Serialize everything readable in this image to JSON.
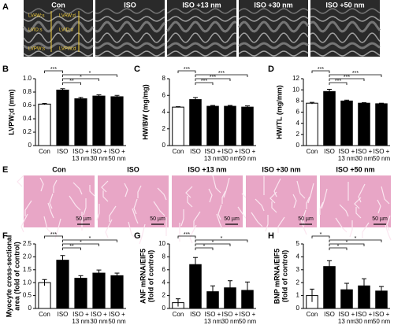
{
  "panel_labels": [
    "A",
    "B",
    "C",
    "D",
    "E",
    "F",
    "G",
    "H"
  ],
  "echo": {
    "titles": [
      "Con",
      "ISO",
      "ISO +13 nm",
      "ISO +30 nm",
      "ISO +50 nm"
    ],
    "annotations": [
      "LVAW;s",
      "LVAW;d",
      "LVID;s",
      "LVID;d",
      "LVPW;s",
      "LVPW;d"
    ]
  },
  "histology": {
    "titles": [
      "Con",
      "ISO",
      "ISO +13 nm",
      "ISO +30 nm",
      "ISO +50 nm"
    ],
    "scale_bar": "50 µm"
  },
  "chart_data": [
    {
      "type": "bar",
      "ylabel": "LVPW;d (mm)",
      "categories": [
        "Con",
        "ISO",
        "ISO + 13 nm",
        "ISO + 30 nm",
        "ISO + 50 nm"
      ],
      "values": [
        0.62,
        0.83,
        0.7,
        0.74,
        0.73
      ],
      "errors": [
        0.01,
        0.02,
        0.02,
        0.02,
        0.02
      ],
      "colors": [
        "#ffffff",
        "#000000",
        "#000000",
        "#000000",
        "#000000"
      ],
      "ylim": [
        0,
        1
      ],
      "yticks": [
        0,
        0.2,
        0.4,
        0.6,
        0.8,
        {
          "value": 1,
          "label": "1.0"
        }
      ],
      "brackets": [
        {
          "text": "***",
          "pair": [
            "Con",
            "ISO"
          ]
        },
        {
          "text": "**",
          "pair": [
            "ISO",
            "ISO + 13 nm"
          ]
        },
        {
          "text": "*",
          "pair": [
            "ISO",
            "ISO + 30 nm"
          ]
        },
        {
          "text": "*",
          "pair": [
            "ISO",
            "ISO + 50 nm"
          ]
        }
      ]
    },
    {
      "type": "bar",
      "ylabel": "HW/BW (mg/mg)",
      "categories": [
        "Con",
        "ISO",
        "ISO + 13 nm",
        "ISO + 30 nm",
        "ISO + 50 nm"
      ],
      "values": [
        4.6,
        5.5,
        4.7,
        4.7,
        4.6
      ],
      "errors": [
        0.05,
        0.25,
        0.1,
        0.1,
        0.15
      ],
      "colors": [
        "#ffffff",
        "#000000",
        "#000000",
        "#000000",
        "#000000"
      ],
      "ylim": [
        0,
        8
      ],
      "yticks": [
        0,
        2,
        4,
        6,
        8
      ],
      "brackets": [
        {
          "text": "***",
          "pair": [
            "Con",
            "ISO"
          ]
        },
        {
          "text": "***",
          "pair": [
            "ISO",
            "ISO + 13 nm"
          ]
        },
        {
          "text": "***",
          "pair": [
            "ISO",
            "ISO + 30 nm"
          ]
        },
        {
          "text": "***",
          "pair": [
            "ISO",
            "ISO + 50 nm"
          ]
        }
      ]
    },
    {
      "type": "bar",
      "ylabel": "HW/TL (mg/mm)",
      "categories": [
        "Con",
        "ISO",
        "ISO + 13 nm",
        "ISO + 30 nm",
        "ISO + 50 nm"
      ],
      "values": [
        7.6,
        9.7,
        8.0,
        7.6,
        7.5
      ],
      "errors": [
        0.15,
        0.4,
        0.15,
        0.1,
        0.1
      ],
      "colors": [
        "#ffffff",
        "#000000",
        "#000000",
        "#000000",
        "#000000"
      ],
      "ylim": [
        0,
        12
      ],
      "yticks": [
        0,
        2,
        4,
        6,
        8,
        10,
        12
      ],
      "brackets": [
        {
          "text": "***",
          "pair": [
            "Con",
            "ISO"
          ]
        },
        {
          "text": "***",
          "pair": [
            "ISO",
            "ISO + 13 nm"
          ]
        },
        {
          "text": "***",
          "pair": [
            "ISO",
            "ISO + 30 nm"
          ]
        },
        {
          "text": "***",
          "pair": [
            "ISO",
            "ISO + 50 nm"
          ]
        }
      ]
    },
    {
      "type": "bar",
      "ylabel": [
        "Myocyte cross-sectional",
        "area (fold of control)"
      ],
      "categories": [
        "Con",
        "ISO",
        "ISO + 13 nm",
        "ISO + 30 nm",
        "ISO + 50 nm"
      ],
      "values": [
        1.0,
        1.87,
        1.17,
        1.37,
        1.27
      ],
      "errors": [
        0.12,
        0.18,
        0.1,
        0.12,
        0.1
      ],
      "colors": [
        "#ffffff",
        "#000000",
        "#000000",
        "#000000",
        "#000000"
      ],
      "ylim": [
        0,
        2.5
      ],
      "yticks": [
        0,
        0.5,
        {
          "value": 1,
          "label": "1.0"
        },
        1.5,
        {
          "value": 2,
          "label": "2.0"
        },
        2.5
      ],
      "brackets": [
        {
          "text": "***",
          "pair": [
            "Con",
            "ISO"
          ]
        },
        {
          "text": "**",
          "pair": [
            "ISO",
            "ISO + 13 nm"
          ]
        },
        {
          "text": "*",
          "pair": [
            "ISO",
            "ISO + 30 nm"
          ]
        },
        {
          "text": "*",
          "pair": [
            "ISO",
            "ISO + 50 nm"
          ]
        }
      ]
    },
    {
      "type": "bar",
      "ylabel": [
        "ANF mRNA/EIF5",
        "(fold of control)"
      ],
      "categories": [
        "Con",
        "ISO",
        "ISO + 13 nm",
        "ISO + 30 nm",
        "ISO + 50 nm"
      ],
      "values": [
        0.9,
        6.8,
        2.6,
        3.2,
        2.8
      ],
      "errors": [
        0.6,
        1.1,
        0.9,
        1.1,
        1.3
      ],
      "colors": [
        "#ffffff",
        "#000000",
        "#000000",
        "#000000",
        "#000000"
      ],
      "ylim": [
        0,
        10
      ],
      "yticks": [
        0,
        2,
        4,
        6,
        8,
        10
      ],
      "brackets": [
        {
          "text": "***",
          "pair": [
            "Con",
            "ISO"
          ]
        },
        {
          "text": "*",
          "pair": [
            "ISO",
            "ISO + 13 nm"
          ]
        },
        {
          "text": "*",
          "pair": [
            "ISO",
            "ISO + 30 nm"
          ]
        },
        {
          "text": "*",
          "pair": [
            "ISO",
            "ISO + 50 nm"
          ]
        }
      ]
    },
    {
      "type": "bar",
      "ylabel": [
        "BNP mRNA/EIF5",
        "(fold of control)"
      ],
      "categories": [
        "Con",
        "ISO",
        "ISO + 13 nm",
        "ISO + 30 nm",
        "ISO + 50 nm"
      ],
      "values": [
        1.0,
        3.25,
        1.45,
        1.75,
        1.35
      ],
      "errors": [
        0.5,
        0.45,
        0.5,
        0.55,
        0.35
      ],
      "colors": [
        "#ffffff",
        "#000000",
        "#000000",
        "#000000",
        "#000000"
      ],
      "ylim": [
        0,
        5
      ],
      "yticks": [
        0,
        1,
        2,
        3,
        4,
        5
      ],
      "brackets": [
        {
          "text": "*",
          "pair": [
            "Con",
            "ISO"
          ]
        },
        {
          "text": "*",
          "pair": [
            "ISO",
            "ISO + 13 nm"
          ]
        },
        {
          "text": "*",
          "pair": [
            "ISO",
            "ISO + 30 nm"
          ]
        },
        {
          "text": "*",
          "pair": [
            "ISO",
            "ISO + 50 nm"
          ]
        }
      ]
    }
  ]
}
